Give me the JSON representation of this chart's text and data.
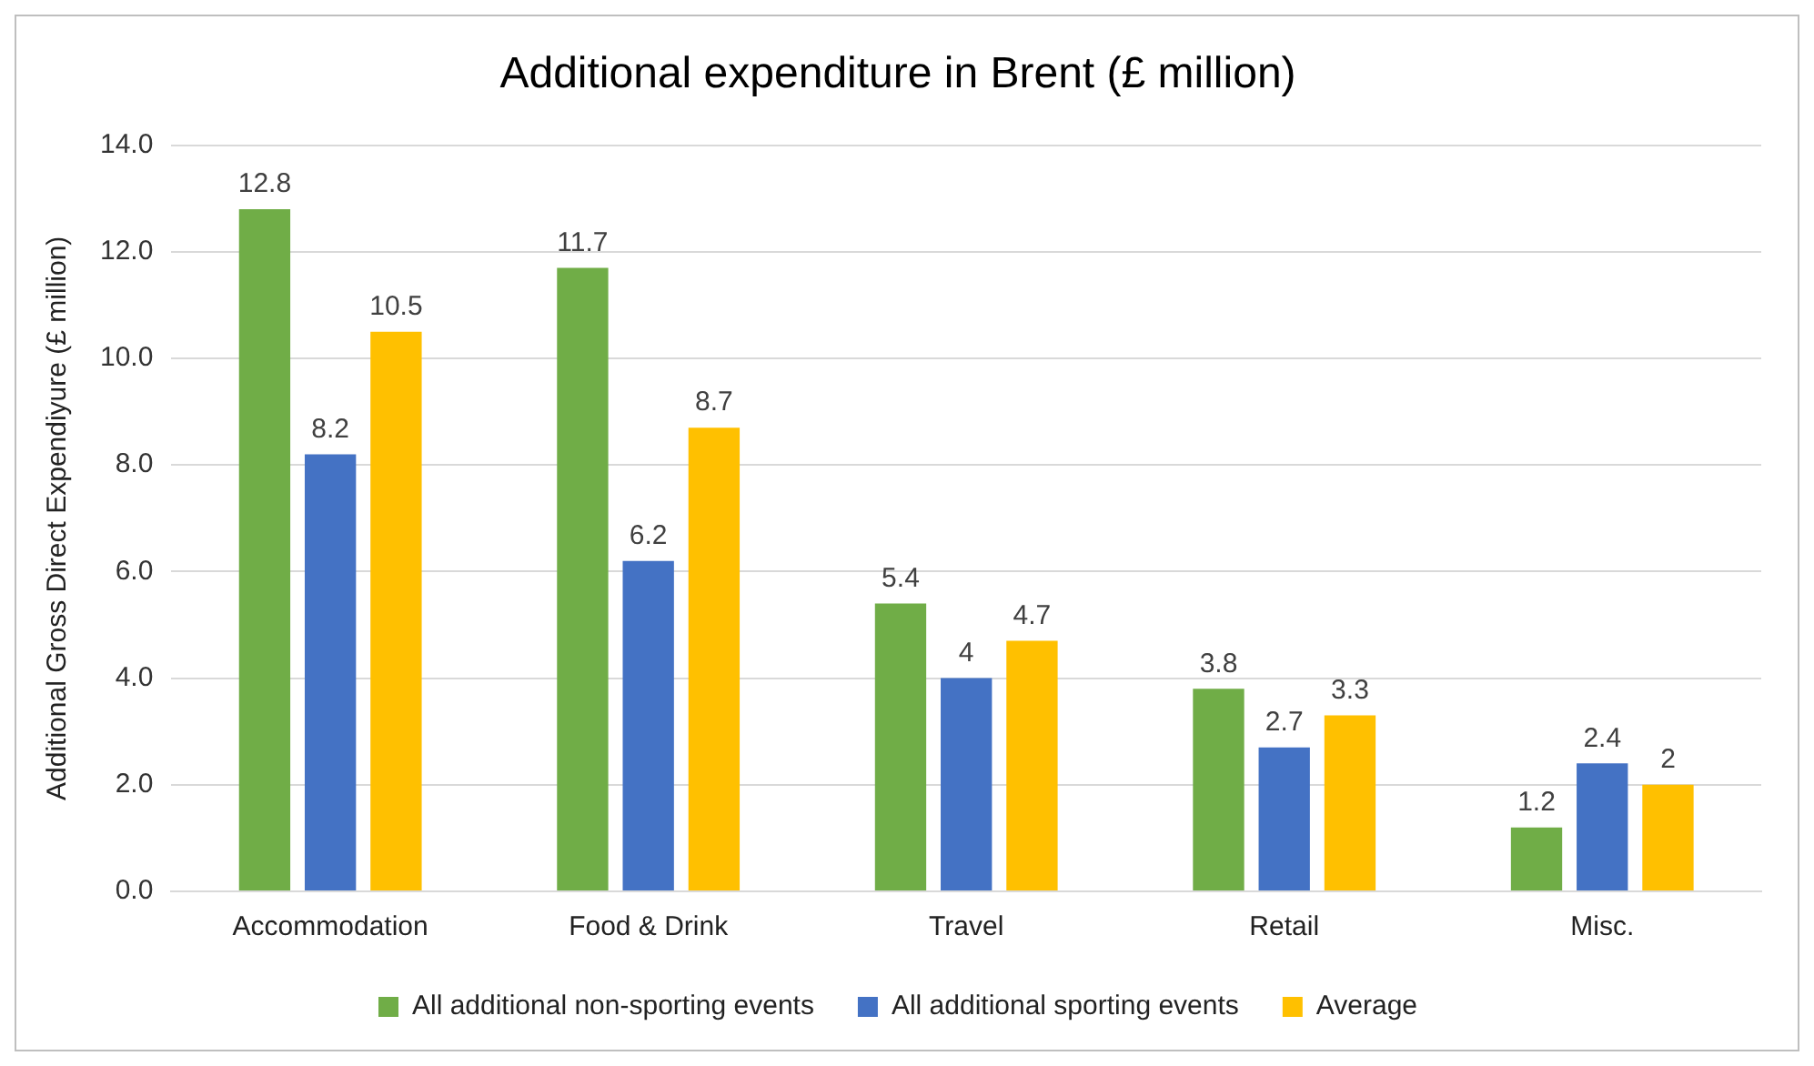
{
  "chart_data": {
    "type": "bar",
    "title": "Additional expenditure in Brent (£ million)",
    "ylabel": "Additional Gross Direct Expendiyure (£ million)",
    "categories": [
      "Accommodation",
      "Food & Drink",
      "Travel",
      "Retail",
      "Misc."
    ],
    "series": [
      {
        "name": "All additional non-sporting events",
        "color": "#70ad47",
        "values": [
          12.8,
          11.7,
          5.4,
          3.8,
          1.2
        ]
      },
      {
        "name": "All additional sporting events",
        "color": "#4472c4",
        "values": [
          8.2,
          6.2,
          4,
          2.7,
          2.4
        ]
      },
      {
        "name": "Average",
        "color": "#ffc000",
        "values": [
          10.5,
          8.7,
          4.7,
          3.3,
          2
        ]
      }
    ],
    "ylim": [
      0,
      14
    ],
    "yticks": [
      {
        "value": 0,
        "label": "0.0"
      },
      {
        "value": 2,
        "label": "2.0"
      },
      {
        "value": 4,
        "label": "4.0"
      },
      {
        "value": 6,
        "label": "6.0"
      },
      {
        "value": 8,
        "label": "8.0"
      },
      {
        "value": 10,
        "label": "10.0"
      },
      {
        "value": 12,
        "label": "12.0"
      },
      {
        "value": 14,
        "label": "14.0"
      }
    ],
    "grid": "y",
    "legend": "bottom",
    "data_labels": true
  }
}
